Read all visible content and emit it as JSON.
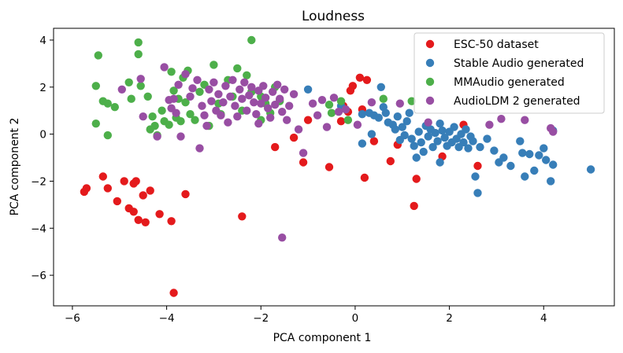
{
  "chart_data": {
    "type": "scatter",
    "title": "Loudness",
    "xlabel": "PCA component 1",
    "ylabel": "PCA component 2",
    "xlim": [
      -6.4,
      5.5
    ],
    "ylim": [
      -7.3,
      4.5
    ],
    "xticks": [
      -6,
      -4,
      -2,
      0,
      2,
      4
    ],
    "yticks": [
      -6,
      -4,
      -2,
      0,
      2,
      4
    ],
    "xtick_labels": [
      "−6",
      "−4",
      "−2",
      "0",
      "2",
      "4"
    ],
    "ytick_labels": [
      "−6",
      "−4",
      "−2",
      "0",
      "2",
      "4"
    ],
    "grid": false,
    "legend_position": "top-right",
    "series": [
      {
        "name": "ESC-50 dataset",
        "color": "#e41a1c",
        "points": [
          [
            -5.75,
            -2.45
          ],
          [
            -5.7,
            -2.3
          ],
          [
            -5.35,
            -1.8
          ],
          [
            -5.25,
            -2.3
          ],
          [
            -5.05,
            -2.85
          ],
          [
            -4.9,
            -2.0
          ],
          [
            -4.8,
            -3.15
          ],
          [
            -4.7,
            -2.1
          ],
          [
            -4.65,
            -2.0
          ],
          [
            -4.7,
            -3.3
          ],
          [
            -4.6,
            -3.65
          ],
          [
            -4.5,
            -2.6
          ],
          [
            -4.45,
            -3.75
          ],
          [
            -4.35,
            -2.4
          ],
          [
            -4.15,
            -3.4
          ],
          [
            -3.9,
            -3.7
          ],
          [
            -3.85,
            -6.75
          ],
          [
            -3.6,
            -2.55
          ],
          [
            -2.4,
            -3.5
          ],
          [
            -1.7,
            -0.55
          ],
          [
            -1.3,
            -0.15
          ],
          [
            -1.1,
            -1.2
          ],
          [
            -1.0,
            0.6
          ],
          [
            -0.55,
            -1.4
          ],
          [
            -0.3,
            0.55
          ],
          [
            -0.25,
            1.2
          ],
          [
            -0.15,
            0.95
          ],
          [
            -0.05,
            2.05
          ],
          [
            0.1,
            2.4
          ],
          [
            0.15,
            1.05
          ],
          [
            0.25,
            2.3
          ],
          [
            0.2,
            -1.85
          ],
          [
            0.4,
            -0.3
          ],
          [
            0.75,
            -1.15
          ],
          [
            0.9,
            -0.45
          ],
          [
            1.25,
            -3.05
          ],
          [
            1.3,
            -1.9
          ],
          [
            1.85,
            -0.95
          ],
          [
            2.3,
            0.4
          ],
          [
            2.6,
            -1.35
          ],
          [
            -0.1,
            1.85
          ]
        ]
      },
      {
        "name": "Stable Audio generated",
        "color": "#377eb8",
        "points": [
          [
            -1.0,
            1.9
          ],
          [
            0.15,
            0.85
          ],
          [
            0.3,
            0.9
          ],
          [
            0.4,
            0.8
          ],
          [
            0.5,
            0.7
          ],
          [
            0.55,
            2.0
          ],
          [
            0.6,
            1.15
          ],
          [
            0.65,
            0.9
          ],
          [
            0.7,
            0.5
          ],
          [
            0.8,
            0.4
          ],
          [
            0.85,
            0.2
          ],
          [
            0.9,
            0.75
          ],
          [
            1.0,
            0.3
          ],
          [
            1.05,
            -0.05
          ],
          [
            1.1,
            0.55
          ],
          [
            1.2,
            -0.2
          ],
          [
            1.25,
            -0.5
          ],
          [
            1.3,
            -1.0
          ],
          [
            1.35,
            0.1
          ],
          [
            1.4,
            -0.35
          ],
          [
            1.45,
            -0.75
          ],
          [
            1.5,
            0.35
          ],
          [
            1.55,
            -0.1
          ],
          [
            1.6,
            0.2
          ],
          [
            1.65,
            -0.55
          ],
          [
            1.7,
            0.05
          ],
          [
            1.75,
            -0.3
          ],
          [
            1.8,
            0.45
          ],
          [
            1.85,
            0.15
          ],
          [
            1.9,
            -0.15
          ],
          [
            1.95,
            -0.5
          ],
          [
            2.0,
            0.1
          ],
          [
            2.05,
            -0.35
          ],
          [
            2.1,
            0.3
          ],
          [
            2.15,
            -0.2
          ],
          [
            2.2,
            -0.55
          ],
          [
            2.25,
            0.0
          ],
          [
            2.3,
            -0.35
          ],
          [
            2.35,
            0.2
          ],
          [
            2.4,
            -0.6
          ],
          [
            2.45,
            -0.1
          ],
          [
            2.5,
            -0.3
          ],
          [
            2.55,
            -1.8
          ],
          [
            2.6,
            -2.5
          ],
          [
            2.65,
            -0.55
          ],
          [
            2.8,
            -0.2
          ],
          [
            2.95,
            -0.7
          ],
          [
            3.05,
            -1.2
          ],
          [
            3.15,
            -1.0
          ],
          [
            3.3,
            -1.35
          ],
          [
            3.5,
            -0.3
          ],
          [
            3.55,
            -0.8
          ],
          [
            3.6,
            -1.8
          ],
          [
            3.7,
            -0.85
          ],
          [
            3.8,
            -1.55
          ],
          [
            3.9,
            -0.9
          ],
          [
            4.0,
            -0.6
          ],
          [
            4.05,
            -1.1
          ],
          [
            4.15,
            -2.0
          ],
          [
            4.2,
            -1.3
          ],
          [
            4.2,
            0.15
          ],
          [
            5.0,
            -1.5
          ],
          [
            0.15,
            -0.4
          ],
          [
            0.35,
            0.0
          ],
          [
            0.95,
            -0.25
          ],
          [
            1.15,
            0.9
          ],
          [
            1.8,
            -1.2
          ],
          [
            -0.3,
            1.2
          ]
        ]
      },
      {
        "name": "MMAudio generated",
        "color": "#4daf4a",
        "points": [
          [
            -5.45,
            3.35
          ],
          [
            -4.6,
            3.9
          ],
          [
            -4.6,
            3.4
          ],
          [
            -2.2,
            4.0
          ],
          [
            -5.5,
            2.05
          ],
          [
            -5.5,
            0.45
          ],
          [
            -5.35,
            1.4
          ],
          [
            -5.25,
            1.3
          ],
          [
            -5.25,
            -0.05
          ],
          [
            -5.1,
            1.15
          ],
          [
            -4.8,
            2.2
          ],
          [
            -4.75,
            1.5
          ],
          [
            -4.55,
            2.05
          ],
          [
            -4.4,
            1.6
          ],
          [
            -4.3,
            0.75
          ],
          [
            -4.25,
            0.35
          ],
          [
            -4.1,
            1.0
          ],
          [
            -4.05,
            0.55
          ],
          [
            -4.2,
            -0.05
          ],
          [
            -3.95,
            0.4
          ],
          [
            -3.9,
            2.65
          ],
          [
            -3.85,
            1.85
          ],
          [
            -3.8,
            0.7
          ],
          [
            -3.75,
            1.5
          ],
          [
            -3.7,
            0.55
          ],
          [
            -3.65,
            2.4
          ],
          [
            -3.6,
            1.35
          ],
          [
            -3.55,
            2.7
          ],
          [
            -3.5,
            0.85
          ],
          [
            -3.4,
            0.6
          ],
          [
            -3.3,
            1.8
          ],
          [
            -3.2,
            2.1
          ],
          [
            -3.1,
            0.35
          ],
          [
            -3.0,
            2.95
          ],
          [
            -2.9,
            1.3
          ],
          [
            -2.85,
            0.85
          ],
          [
            -2.7,
            2.3
          ],
          [
            -2.6,
            1.6
          ],
          [
            -2.5,
            2.8
          ],
          [
            -2.4,
            1.0
          ],
          [
            -2.3,
            2.5
          ],
          [
            -2.2,
            1.8
          ],
          [
            -2.0,
            0.6
          ],
          [
            -1.9,
            1.3
          ],
          [
            -1.8,
            0.9
          ],
          [
            -1.7,
            2.0
          ],
          [
            -1.6,
            1.4
          ],
          [
            -0.55,
            1.25
          ],
          [
            -0.5,
            0.9
          ],
          [
            -0.3,
            1.4
          ],
          [
            -0.15,
            0.6
          ],
          [
            0.6,
            1.5
          ],
          [
            1.2,
            1.4
          ],
          [
            -4.35,
            0.2
          ],
          [
            -2.0,
            1.6
          ]
        ]
      },
      {
        "name": "AudioLDM 2 generated",
        "color": "#984ea3",
        "points": [
          [
            -4.05,
            2.85
          ],
          [
            -3.85,
            1.5
          ],
          [
            -3.75,
            2.1
          ],
          [
            -3.9,
            1.1
          ],
          [
            -3.8,
            0.9
          ],
          [
            -4.2,
            -0.1
          ],
          [
            -3.7,
            -0.1
          ],
          [
            -3.5,
            1.6
          ],
          [
            -3.45,
            1.95
          ],
          [
            -3.35,
            2.3
          ],
          [
            -3.25,
            1.2
          ],
          [
            -3.2,
            0.8
          ],
          [
            -3.15,
            0.35
          ],
          [
            -3.1,
            1.9
          ],
          [
            -3.05,
            1.4
          ],
          [
            -3.0,
            2.2
          ],
          [
            -2.95,
            1.0
          ],
          [
            -2.9,
            1.7
          ],
          [
            -2.85,
            0.8
          ],
          [
            -2.8,
            1.35
          ],
          [
            -2.75,
            2.05
          ],
          [
            -2.7,
            0.5
          ],
          [
            -2.65,
            1.6
          ],
          [
            -2.6,
            2.3
          ],
          [
            -2.55,
            1.2
          ],
          [
            -2.5,
            0.75
          ],
          [
            -2.45,
            1.9
          ],
          [
            -2.4,
            1.5
          ],
          [
            -2.35,
            2.2
          ],
          [
            -2.3,
            1.0
          ],
          [
            -2.25,
            1.65
          ],
          [
            -2.2,
            2.0
          ],
          [
            -2.15,
            1.35
          ],
          [
            -2.1,
            0.85
          ],
          [
            -2.05,
            1.85
          ],
          [
            -2.0,
            1.3
          ],
          [
            -1.95,
            2.05
          ],
          [
            -1.9,
            1.55
          ],
          [
            -1.85,
            1.1
          ],
          [
            -1.8,
            0.7
          ],
          [
            -1.75,
            1.8
          ],
          [
            -1.7,
            1.25
          ],
          [
            -1.65,
            2.1
          ],
          [
            -1.6,
            1.5
          ],
          [
            -1.55,
            0.95
          ],
          [
            -1.5,
            1.9
          ],
          [
            -1.45,
            0.6
          ],
          [
            -1.4,
            1.2
          ],
          [
            -1.3,
            1.7
          ],
          [
            -1.2,
            0.2
          ],
          [
            -1.1,
            -0.8
          ],
          [
            -0.9,
            1.3
          ],
          [
            -0.8,
            0.8
          ],
          [
            -0.7,
            1.45
          ],
          [
            -0.6,
            0.3
          ],
          [
            -0.45,
            1.55
          ],
          [
            -0.35,
            0.95
          ],
          [
            -0.2,
            1.05
          ],
          [
            0.05,
            0.4
          ],
          [
            0.35,
            1.35
          ],
          [
            0.95,
            1.3
          ],
          [
            1.55,
            0.5
          ],
          [
            2.85,
            0.4
          ],
          [
            3.1,
            0.65
          ],
          [
            3.6,
            0.6
          ],
          [
            4.15,
            0.25
          ],
          [
            4.2,
            0.1
          ],
          [
            -1.55,
            -4.4
          ],
          [
            -3.3,
            -0.6
          ],
          [
            -4.5,
            0.75
          ],
          [
            -4.95,
            1.9
          ],
          [
            -4.55,
            2.35
          ],
          [
            -3.6,
            2.55
          ],
          [
            -2.05,
            0.45
          ],
          [
            -3.95,
            1.45
          ]
        ]
      }
    ]
  }
}
